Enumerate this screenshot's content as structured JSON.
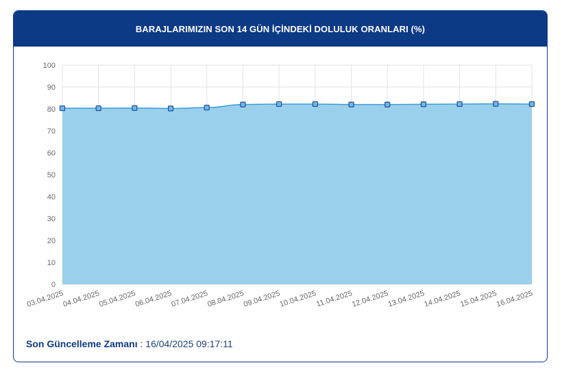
{
  "header": {
    "title": "BARAJLARIMIZIN SON 14 GÜN İÇİNDEKİ DOLULUK ORANLARI (%)"
  },
  "footer": {
    "label": "Son Güncelleme Zamanı",
    "separator": " : ",
    "value": "16/04/2025 09:17:11"
  },
  "chart_data": {
    "type": "area",
    "categories": [
      "03.04.2025",
      "04.04.2025",
      "05.04.2025",
      "06.04.2025",
      "07.04.2025",
      "08.04.2025",
      "09.04.2025",
      "10.04.2025",
      "11.04.2025",
      "12.04.2025",
      "13.04.2025",
      "14.04.2025",
      "15.04.2025",
      "16.04.2025"
    ],
    "series": [
      {
        "values": [
          80.3,
          80.3,
          80.4,
          80.2,
          80.6,
          82.0,
          82.2,
          82.2,
          82.0,
          82.0,
          82.1,
          82.2,
          82.3,
          82.2
        ]
      }
    ],
    "title": "",
    "xlabel": "",
    "ylabel": "",
    "ylim": [
      0,
      100
    ],
    "yticks": [
      0,
      10,
      20,
      30,
      40,
      50,
      60,
      70,
      80,
      90,
      100
    ],
    "grid": true,
    "legend": "none",
    "colors": {
      "fill": "#9bd0ec",
      "line": "#3b9bd3",
      "marker_fill": "#6fb7e6",
      "marker_stroke": "#1b4f96",
      "grid": "#e3e3e3",
      "axis_text": "#666666"
    }
  }
}
